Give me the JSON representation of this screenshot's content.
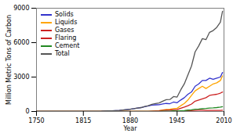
{
  "chart_data": {
    "type": "line",
    "xlabel": "Year",
    "ylabel": "Million Metric Tons of Carbon",
    "xlim": [
      1750,
      2010
    ],
    "ylim": [
      0,
      9000
    ],
    "xticks": [
      1750,
      1815,
      1880,
      1945,
      2010
    ],
    "yticks": [
      0,
      3000,
      6000,
      9000
    ],
    "grid": false,
    "legend": "upper left",
    "x": [
      1750,
      1760,
      1770,
      1780,
      1790,
      1800,
      1810,
      1820,
      1830,
      1840,
      1850,
      1855,
      1860,
      1865,
      1870,
      1875,
      1880,
      1885,
      1890,
      1895,
      1900,
      1905,
      1910,
      1915,
      1920,
      1925,
      1930,
      1935,
      1940,
      1945,
      1950,
      1955,
      1960,
      1965,
      1970,
      1975,
      1980,
      1985,
      1990,
      1995,
      2000,
      2005,
      2008
    ],
    "series": [
      {
        "name": "Solids",
        "color": "#3333cc",
        "values": [
          3,
          3,
          3,
          4,
          5,
          6,
          8,
          10,
          14,
          22,
          55,
          60,
          80,
          100,
          130,
          165,
          200,
          240,
          300,
          340,
          420,
          480,
          560,
          580,
          590,
          650,
          700,
          680,
          820,
          760,
          1000,
          1200,
          1500,
          1700,
          2200,
          2400,
          2700,
          2700,
          2900,
          2800,
          2900,
          3000,
          3400
        ]
      },
      {
        "name": "Liquids",
        "color": "#ffa500",
        "values": [
          0,
          0,
          0,
          0,
          0,
          0,
          0,
          0,
          0,
          0,
          0,
          0,
          0,
          0,
          0,
          0,
          0,
          0,
          0,
          0,
          5,
          10,
          30,
          50,
          80,
          130,
          180,
          190,
          250,
          280,
          500,
          700,
          1000,
          1400,
          1800,
          2000,
          2200,
          2000,
          2200,
          2400,
          2500,
          2700,
          3100
        ]
      },
      {
        "name": "Gases",
        "color": "#cc2222",
        "values": [
          0,
          0,
          0,
          0,
          0,
          0,
          0,
          0,
          0,
          0,
          0,
          0,
          0,
          0,
          0,
          0,
          0,
          0,
          0,
          0,
          5,
          10,
          25,
          40,
          60,
          90,
          120,
          130,
          160,
          160,
          280,
          380,
          500,
          650,
          900,
          1000,
          1100,
          1200,
          1400,
          1450,
          1500,
          1600,
          1700
        ]
      },
      {
        "name": "Flaring",
        "color": "#cc2222",
        "values": [
          0,
          0,
          0,
          0,
          0,
          0,
          0,
          0,
          0,
          0,
          0,
          0,
          0,
          0,
          0,
          0,
          0,
          0,
          0,
          0,
          0,
          0,
          0,
          0,
          0,
          5,
          10,
          15,
          20,
          20,
          40,
          50,
          70,
          80,
          100,
          110,
          110,
          100,
          100,
          90,
          90,
          100,
          110
        ]
      },
      {
        "name": "Cement",
        "color": "#228822",
        "values": [
          0,
          0,
          0,
          0,
          0,
          0,
          0,
          0,
          0,
          0,
          0,
          0,
          0,
          0,
          0,
          0,
          0,
          0,
          0,
          0,
          0,
          5,
          10,
          15,
          15,
          20,
          25,
          30,
          50,
          40,
          60,
          80,
          120,
          140,
          200,
          210,
          240,
          260,
          300,
          310,
          340,
          380,
          420
        ]
      },
      {
        "name": "Total",
        "color": "#555555",
        "values": [
          3,
          3,
          3,
          4,
          5,
          6,
          8,
          10,
          14,
          22,
          55,
          60,
          80,
          100,
          130,
          165,
          200,
          240,
          300,
          340,
          430,
          505,
          625,
          685,
          745,
          895,
          1035,
          1045,
          1300,
          1260,
          1880,
          2410,
          3190,
          3970,
          5200,
          5720,
          6350,
          6260,
          6900,
          7050,
          7330,
          7780,
          8730
        ]
      }
    ]
  }
}
